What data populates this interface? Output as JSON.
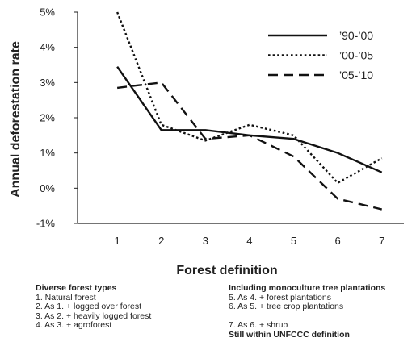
{
  "chart_data": {
    "type": "line",
    "xlabel": "Forest definition",
    "ylabel": "Annual deforestation rate",
    "x": [
      1,
      2,
      3,
      4,
      5,
      6,
      7
    ],
    "xlim": [
      0.1,
      7.5
    ],
    "ylim": [
      -1,
      5
    ],
    "yticks": [
      "-1%",
      "0%",
      "1%",
      "2%",
      "3%",
      "4%",
      "5%"
    ],
    "xticks": [
      "1",
      "2",
      "3",
      "4",
      "5",
      "6",
      "7"
    ],
    "legend_position": "top-right",
    "series": [
      {
        "name": "’90-’00",
        "style": "solid",
        "values": [
          3.45,
          1.65,
          1.65,
          1.5,
          1.4,
          1.0,
          0.45
        ]
      },
      {
        "name": "’00-’05",
        "style": "dotted",
        "values": [
          5.0,
          1.8,
          1.35,
          1.8,
          1.5,
          0.15,
          0.85
        ]
      },
      {
        "name": "’05-’10",
        "style": "dashed",
        "values": [
          2.85,
          3.0,
          1.4,
          1.5,
          0.9,
          -0.3,
          -0.6
        ]
      }
    ]
  },
  "notes": {
    "left_header": "Diverse forest types",
    "left_items": [
      "1. Natural forest",
      "2. As 1. + logged over forest",
      "3. As 2. + heavily logged forest",
      "4. As 3. + agroforest"
    ],
    "right_header": "Including monoculture tree plantations",
    "right_items": [
      "5. As 4. + forest plantations",
      "6. As 5. + tree crop plantations"
    ],
    "right_item_7": "7. As 6. + shrub",
    "right_footer": "Still within UNFCCC definition"
  }
}
